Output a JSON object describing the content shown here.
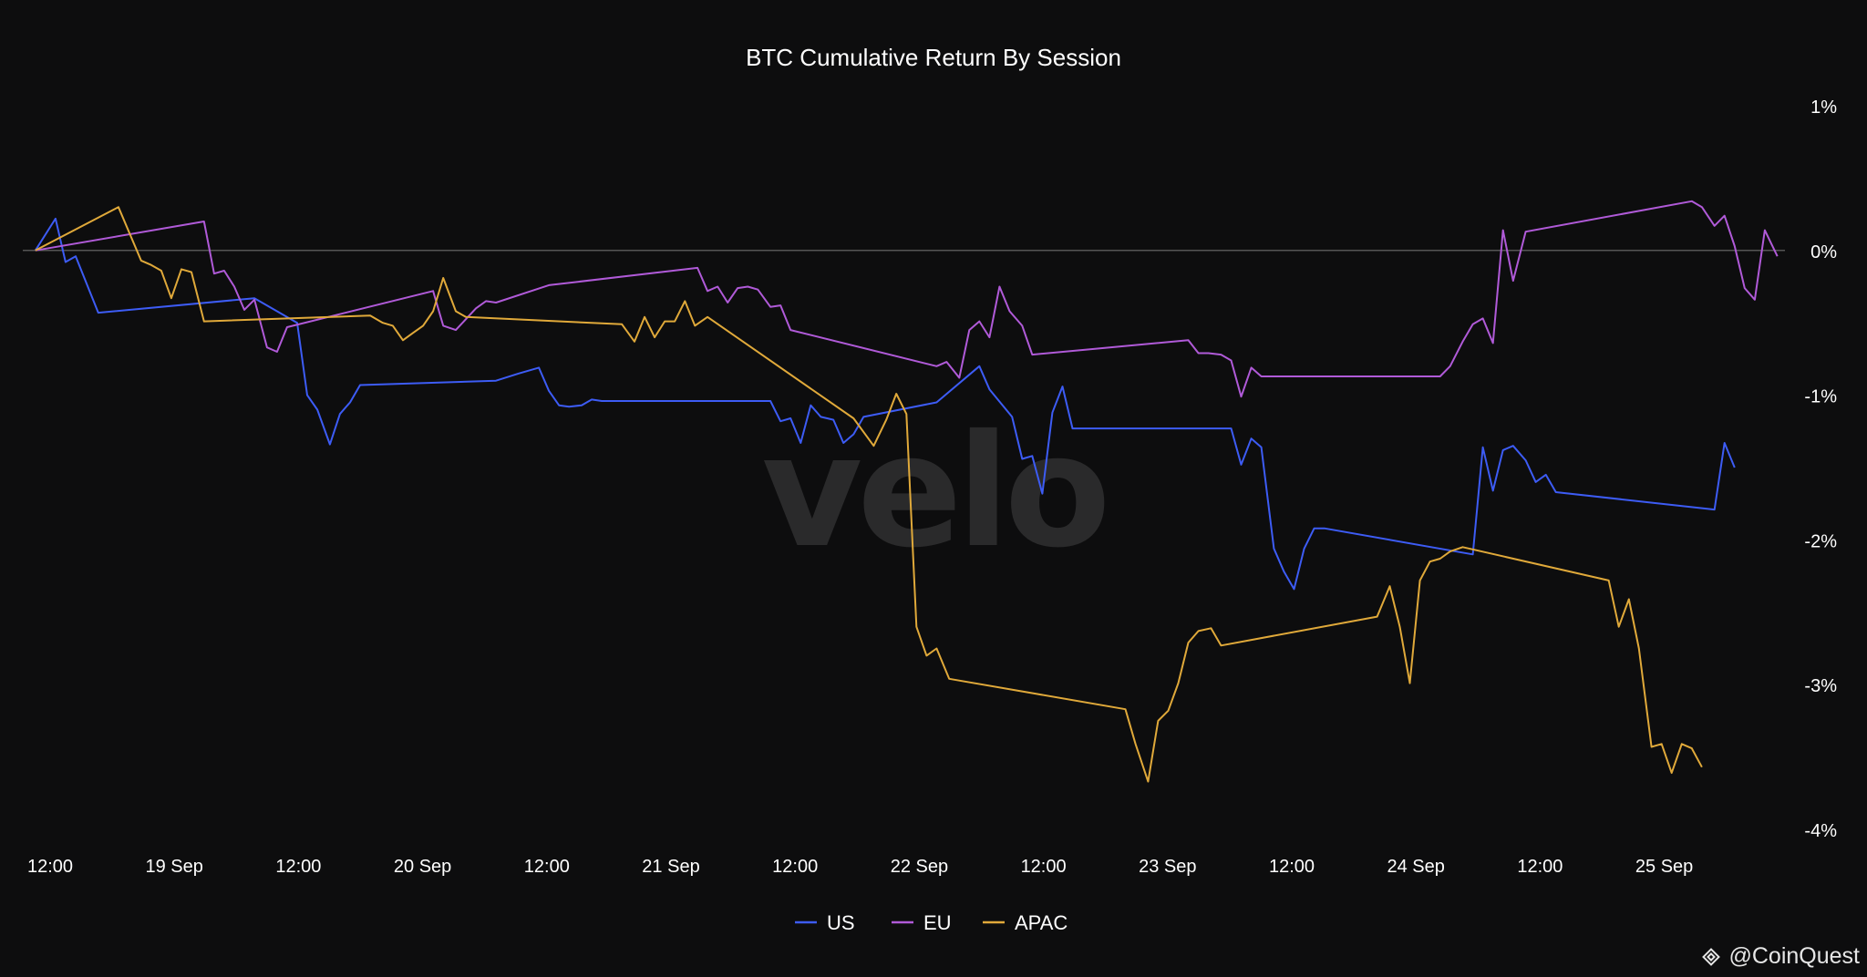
{
  "chart_data": {
    "type": "line",
    "title": "BTC Cumulative Return By Session",
    "watermark": "velo",
    "x_ticks": [
      "12:00",
      "19 Sep",
      "12:00",
      "20 Sep",
      "12:00",
      "21 Sep",
      "12:00",
      "22 Sep",
      "12:00",
      "23 Sep",
      "12:00",
      "24 Sep",
      "12:00",
      "25 Sep"
    ],
    "y_ticks": [
      {
        "value": 1,
        "label": "1%"
      },
      {
        "value": 0,
        "label": "0%"
      },
      {
        "value": -1,
        "label": "-1%"
      },
      {
        "value": -2,
        "label": "-2%"
      },
      {
        "value": -3,
        "label": "-3%"
      },
      {
        "value": -4,
        "label": "-4%"
      }
    ],
    "ylim": [
      -4,
      1
    ],
    "xlim": [
      -0.05,
      6.95
    ],
    "x_unit": "days since 18 Sep 12:00",
    "zero_line": true,
    "legend_position": "bottom-center",
    "series": [
      {
        "name": "US",
        "color": "#3d5cf5",
        "points": [
          [
            0.0,
            0.0
          ],
          [
            0.08,
            0.22
          ],
          [
            0.12,
            -0.08
          ],
          [
            0.16,
            -0.04
          ],
          [
            0.25,
            -0.43
          ],
          [
            0.87,
            -0.33
          ],
          [
            1.04,
            -0.5
          ],
          [
            1.08,
            -1.0
          ],
          [
            1.12,
            -1.1
          ],
          [
            1.17,
            -1.34
          ],
          [
            1.21,
            -1.13
          ],
          [
            1.25,
            -1.05
          ],
          [
            1.29,
            -0.93
          ],
          [
            1.83,
            -0.9
          ],
          [
            1.92,
            -0.85
          ],
          [
            2.0,
            -0.81
          ],
          [
            2.04,
            -0.97
          ],
          [
            2.08,
            -1.07
          ],
          [
            2.12,
            -1.08
          ],
          [
            2.17,
            -1.07
          ],
          [
            2.21,
            -1.03
          ],
          [
            2.25,
            -1.04
          ],
          [
            2.92,
            -1.04
          ],
          [
            2.96,
            -1.18
          ],
          [
            3.0,
            -1.16
          ],
          [
            3.04,
            -1.33
          ],
          [
            3.08,
            -1.07
          ],
          [
            3.12,
            -1.15
          ],
          [
            3.17,
            -1.17
          ],
          [
            3.21,
            -1.33
          ],
          [
            3.25,
            -1.27
          ],
          [
            3.29,
            -1.15
          ],
          [
            3.58,
            -1.05
          ],
          [
            3.75,
            -0.8
          ],
          [
            3.79,
            -0.96
          ],
          [
            3.88,
            -1.15
          ],
          [
            3.92,
            -1.44
          ],
          [
            3.96,
            -1.42
          ],
          [
            4.0,
            -1.68
          ],
          [
            4.04,
            -1.12
          ],
          [
            4.08,
            -0.94
          ],
          [
            4.12,
            -1.23
          ],
          [
            4.75,
            -1.23
          ],
          [
            4.79,
            -1.48
          ],
          [
            4.83,
            -1.3
          ],
          [
            4.87,
            -1.36
          ],
          [
            4.92,
            -2.06
          ],
          [
            4.96,
            -2.22
          ],
          [
            5.0,
            -2.34
          ],
          [
            5.04,
            -2.06
          ],
          [
            5.08,
            -1.92
          ],
          [
            5.12,
            -1.92
          ],
          [
            5.71,
            -2.1
          ],
          [
            5.75,
            -1.36
          ],
          [
            5.79,
            -1.66
          ],
          [
            5.83,
            -1.38
          ],
          [
            5.87,
            -1.35
          ],
          [
            5.92,
            -1.45
          ],
          [
            5.96,
            -1.6
          ],
          [
            6.0,
            -1.55
          ],
          [
            6.04,
            -1.67
          ],
          [
            6.67,
            -1.79
          ],
          [
            6.71,
            -1.33
          ],
          [
            6.75,
            -1.5
          ]
        ]
      },
      {
        "name": "EU",
        "color": "#b05ad8",
        "points": [
          [
            0.0,
            0.0
          ],
          [
            0.67,
            0.2
          ],
          [
            0.71,
            -0.16
          ],
          [
            0.75,
            -0.14
          ],
          [
            0.79,
            -0.25
          ],
          [
            0.83,
            -0.41
          ],
          [
            0.87,
            -0.34
          ],
          [
            0.92,
            -0.67
          ],
          [
            0.96,
            -0.7
          ],
          [
            1.0,
            -0.53
          ],
          [
            1.58,
            -0.28
          ],
          [
            1.62,
            -0.52
          ],
          [
            1.67,
            -0.55
          ],
          [
            1.75,
            -0.4
          ],
          [
            1.79,
            -0.35
          ],
          [
            1.83,
            -0.36
          ],
          [
            2.04,
            -0.24
          ],
          [
            2.63,
            -0.12
          ],
          [
            2.67,
            -0.28
          ],
          [
            2.71,
            -0.25
          ],
          [
            2.75,
            -0.36
          ],
          [
            2.79,
            -0.26
          ],
          [
            2.83,
            -0.25
          ],
          [
            2.87,
            -0.27
          ],
          [
            2.92,
            -0.39
          ],
          [
            2.96,
            -0.38
          ],
          [
            3.0,
            -0.55
          ],
          [
            3.58,
            -0.8
          ],
          [
            3.62,
            -0.77
          ],
          [
            3.67,
            -0.88
          ],
          [
            3.71,
            -0.55
          ],
          [
            3.75,
            -0.49
          ],
          [
            3.79,
            -0.6
          ],
          [
            3.83,
            -0.25
          ],
          [
            3.87,
            -0.42
          ],
          [
            3.92,
            -0.52
          ],
          [
            3.96,
            -0.72
          ],
          [
            4.58,
            -0.62
          ],
          [
            4.62,
            -0.71
          ],
          [
            4.66,
            -0.71
          ],
          [
            4.71,
            -0.72
          ],
          [
            4.75,
            -0.76
          ],
          [
            4.79,
            -1.01
          ],
          [
            4.83,
            -0.81
          ],
          [
            4.87,
            -0.87
          ],
          [
            5.58,
            -0.87
          ],
          [
            5.62,
            -0.8
          ],
          [
            5.67,
            -0.63
          ],
          [
            5.71,
            -0.51
          ],
          [
            5.75,
            -0.47
          ],
          [
            5.79,
            -0.64
          ],
          [
            5.83,
            0.14
          ],
          [
            5.87,
            -0.21
          ],
          [
            5.92,
            0.13
          ],
          [
            6.58,
            0.34
          ],
          [
            6.62,
            0.3
          ],
          [
            6.67,
            0.17
          ],
          [
            6.71,
            0.24
          ],
          [
            6.75,
            0.03
          ],
          [
            6.79,
            -0.26
          ],
          [
            6.83,
            -0.34
          ],
          [
            6.87,
            0.14
          ],
          [
            6.92,
            -0.04
          ]
        ]
      },
      {
        "name": "APAC",
        "color": "#e0a93a",
        "points": [
          [
            0.0,
            0.0
          ],
          [
            0.33,
            0.3
          ],
          [
            0.42,
            -0.07
          ],
          [
            0.46,
            -0.1
          ],
          [
            0.5,
            -0.14
          ],
          [
            0.54,
            -0.33
          ],
          [
            0.58,
            -0.13
          ],
          [
            0.62,
            -0.15
          ],
          [
            0.67,
            -0.49
          ],
          [
            1.33,
            -0.45
          ],
          [
            1.38,
            -0.5
          ],
          [
            1.42,
            -0.52
          ],
          [
            1.46,
            -0.62
          ],
          [
            1.5,
            -0.57
          ],
          [
            1.54,
            -0.52
          ],
          [
            1.58,
            -0.42
          ],
          [
            1.62,
            -0.19
          ],
          [
            1.67,
            -0.42
          ],
          [
            1.71,
            -0.46
          ],
          [
            2.33,
            -0.51
          ],
          [
            2.38,
            -0.63
          ],
          [
            2.42,
            -0.46
          ],
          [
            2.46,
            -0.6
          ],
          [
            2.5,
            -0.49
          ],
          [
            2.54,
            -0.49
          ],
          [
            2.58,
            -0.35
          ],
          [
            2.62,
            -0.52
          ],
          [
            2.67,
            -0.46
          ],
          [
            3.25,
            -1.16
          ],
          [
            3.33,
            -1.35
          ],
          [
            3.38,
            -1.17
          ],
          [
            3.42,
            -0.99
          ],
          [
            3.46,
            -1.13
          ],
          [
            3.5,
            -2.6
          ],
          [
            3.54,
            -2.8
          ],
          [
            3.58,
            -2.75
          ],
          [
            3.63,
            -2.96
          ],
          [
            4.33,
            -3.17
          ],
          [
            4.37,
            -3.41
          ],
          [
            4.42,
            -3.67
          ],
          [
            4.46,
            -3.25
          ],
          [
            4.5,
            -3.18
          ],
          [
            4.54,
            -2.99
          ],
          [
            4.58,
            -2.71
          ],
          [
            4.62,
            -2.63
          ],
          [
            4.67,
            -2.61
          ],
          [
            4.71,
            -2.73
          ],
          [
            5.33,
            -2.53
          ],
          [
            5.38,
            -2.32
          ],
          [
            5.42,
            -2.6
          ],
          [
            5.46,
            -2.99
          ],
          [
            5.5,
            -2.28
          ],
          [
            5.54,
            -2.15
          ],
          [
            5.58,
            -2.13
          ],
          [
            5.62,
            -2.08
          ],
          [
            5.67,
            -2.05
          ],
          [
            6.25,
            -2.28
          ],
          [
            6.29,
            -2.6
          ],
          [
            6.33,
            -2.41
          ],
          [
            6.37,
            -2.75
          ],
          [
            6.42,
            -3.43
          ],
          [
            6.46,
            -3.41
          ],
          [
            6.5,
            -3.61
          ],
          [
            6.54,
            -3.41
          ],
          [
            6.58,
            -3.44
          ],
          [
            6.62,
            -3.57
          ]
        ]
      }
    ]
  },
  "credit": {
    "text": "@CoinQuest",
    "icon": "binance-diamond-icon"
  }
}
